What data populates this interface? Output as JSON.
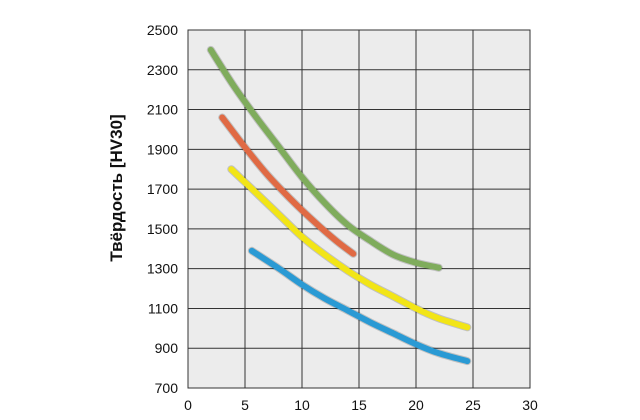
{
  "chart_data": {
    "type": "line",
    "title": "",
    "xlabel": "",
    "ylabel": "Твёрдость [HV30]",
    "xlim": [
      0,
      30
    ],
    "ylim": [
      700,
      2500
    ],
    "x_ticks": [
      0,
      5,
      10,
      15,
      20,
      25,
      30
    ],
    "y_ticks": [
      700,
      900,
      1100,
      1300,
      1500,
      1700,
      1900,
      2100,
      2300,
      2500
    ],
    "grid": true,
    "legend": "none",
    "background": "#ececec",
    "series": [
      {
        "color": "#7fac5c",
        "points": [
          [
            2.0,
            2400
          ],
          [
            4.0,
            2220
          ],
          [
            6.0,
            2060
          ],
          [
            8.0,
            1910
          ],
          [
            10.0,
            1760
          ],
          [
            12.0,
            1630
          ],
          [
            14.0,
            1520
          ],
          [
            16.0,
            1440
          ],
          [
            18.0,
            1370
          ],
          [
            20.0,
            1330
          ],
          [
            22.0,
            1305
          ]
        ]
      },
      {
        "color": "#e06a44",
        "points": [
          [
            3.0,
            2060
          ],
          [
            5.0,
            1910
          ],
          [
            7.0,
            1770
          ],
          [
            9.0,
            1650
          ],
          [
            11.0,
            1540
          ],
          [
            13.0,
            1440
          ],
          [
            14.5,
            1375
          ]
        ]
      },
      {
        "color": "#f2e516",
        "points": [
          [
            3.8,
            1800
          ],
          [
            6.0,
            1680
          ],
          [
            8.0,
            1570
          ],
          [
            10.0,
            1460
          ],
          [
            12.0,
            1370
          ],
          [
            14.0,
            1290
          ],
          [
            16.0,
            1220
          ],
          [
            18.0,
            1160
          ],
          [
            20.0,
            1100
          ],
          [
            22.0,
            1050
          ],
          [
            24.5,
            1005
          ]
        ]
      },
      {
        "color": "#2a9ad4",
        "points": [
          [
            5.6,
            1390
          ],
          [
            8.0,
            1300
          ],
          [
            10.0,
            1220
          ],
          [
            12.0,
            1150
          ],
          [
            14.0,
            1090
          ],
          [
            16.0,
            1030
          ],
          [
            18.0,
            975
          ],
          [
            20.0,
            920
          ],
          [
            22.0,
            875
          ],
          [
            24.5,
            835
          ]
        ]
      }
    ]
  }
}
